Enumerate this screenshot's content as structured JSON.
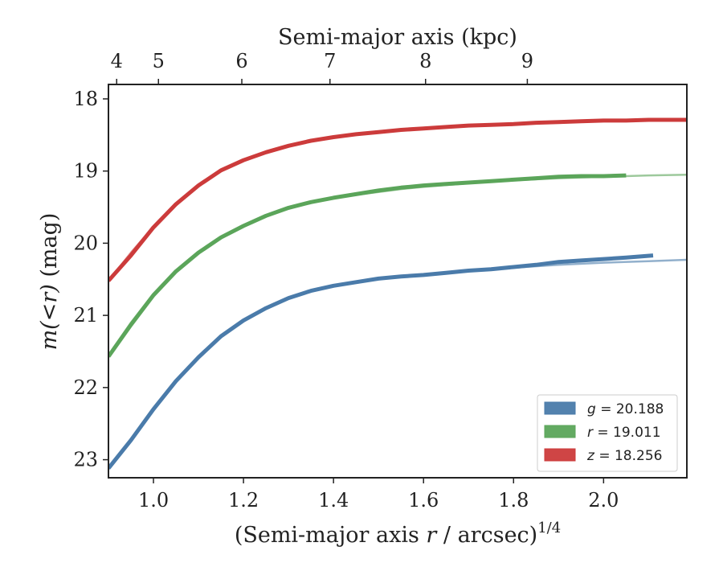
{
  "chart_data": {
    "type": "line",
    "x_axis_bottom": {
      "label_pre": "(Semi-major axis ",
      "label_var": "r",
      "label_post": " / arcsec)",
      "label_exp": "1/4",
      "range": [
        0.9,
        2.185
      ],
      "ticks": [
        1.0,
        1.2,
        1.4,
        1.6,
        1.8,
        2.0
      ],
      "tick_labels": [
        "1.0",
        "1.2",
        "1.4",
        "1.6",
        "1.8",
        "2.0"
      ]
    },
    "x_axis_top": {
      "label": "Semi-major axis (kpc)",
      "ticks_at_bottom_x": [
        0.812,
        0.917,
        1.009,
        1.092,
        1.167,
        1.237
      ],
      "tick_labels": [
        "4",
        "5",
        "6",
        "7",
        "8",
        "9"
      ],
      "ticks_native_x": [
        0.9,
        1.0,
        1.2,
        1.4,
        1.6,
        1.8,
        2.0,
        2.185
      ],
      "ticks_native_kpc": [
        3.79,
        4.94,
        6.02,
        7.04,
        7.98,
        8.87,
        9.72,
        10.5
      ]
    },
    "y_axis": {
      "label_var": "m(<r)",
      "label_unit": " (mag)",
      "range": [
        23.25,
        17.8
      ],
      "inverted": true,
      "ticks": [
        18,
        19,
        20,
        21,
        22,
        23
      ],
      "tick_labels": [
        "18",
        "19",
        "20",
        "21",
        "22",
        "23"
      ]
    },
    "grid": false,
    "legend_position": "lower-right",
    "series": [
      {
        "name": "g = 20.188",
        "legend_var": "g",
        "legend_value": " = 20.188",
        "color": "#4a7baa",
        "model_x": [
          0.9,
          0.95,
          1.0,
          1.05,
          1.1,
          1.15,
          1.2,
          1.25,
          1.3,
          1.35,
          1.4,
          1.45,
          1.5,
          1.55,
          1.6,
          1.7,
          1.8,
          1.9,
          2.0,
          2.1,
          2.185
        ],
        "model_y": [
          23.12,
          22.72,
          22.29,
          21.9,
          21.57,
          21.29,
          21.07,
          20.9,
          20.77,
          20.67,
          20.59,
          20.53,
          20.49,
          20.46,
          20.43,
          20.38,
          20.34,
          20.3,
          20.27,
          20.25,
          20.23
        ],
        "data_x": [
          0.9,
          0.95,
          1.0,
          1.05,
          1.1,
          1.15,
          1.2,
          1.25,
          1.3,
          1.35,
          1.4,
          1.45,
          1.5,
          1.55,
          1.6,
          1.65,
          1.7,
          1.75,
          1.8,
          1.85,
          1.9,
          1.95,
          2.0,
          2.05,
          2.11
        ],
        "data_y": [
          23.12,
          22.73,
          22.3,
          21.91,
          21.58,
          21.29,
          21.07,
          20.9,
          20.76,
          20.66,
          20.59,
          20.54,
          20.49,
          20.46,
          20.44,
          20.41,
          20.38,
          20.36,
          20.33,
          20.3,
          20.26,
          20.24,
          20.22,
          20.2,
          20.17
        ]
      },
      {
        "name": "r = 19.011",
        "legend_var": "r",
        "legend_value": " = 19.011",
        "color": "#5ba55a",
        "model_x": [
          0.9,
          0.95,
          1.0,
          1.05,
          1.1,
          1.15,
          1.2,
          1.25,
          1.3,
          1.35,
          1.4,
          1.45,
          1.5,
          1.55,
          1.6,
          1.7,
          1.8,
          1.9,
          2.0,
          2.1,
          2.185
        ],
        "model_y": [
          21.55,
          21.1,
          20.7,
          20.38,
          20.12,
          19.91,
          19.75,
          19.62,
          19.52,
          19.44,
          19.38,
          19.33,
          19.29,
          19.25,
          19.22,
          19.17,
          19.13,
          19.1,
          19.08,
          19.06,
          19.05
        ],
        "data_x": [
          0.9,
          0.95,
          1.0,
          1.05,
          1.1,
          1.15,
          1.2,
          1.25,
          1.3,
          1.35,
          1.4,
          1.45,
          1.5,
          1.55,
          1.6,
          1.65,
          1.7,
          1.75,
          1.8,
          1.85,
          1.9,
          1.95,
          2.0,
          2.05
        ],
        "data_y": [
          21.57,
          21.13,
          20.72,
          20.39,
          20.13,
          19.92,
          19.76,
          19.62,
          19.51,
          19.43,
          19.37,
          19.32,
          19.27,
          19.23,
          19.2,
          19.18,
          19.16,
          19.14,
          19.12,
          19.1,
          19.08,
          19.07,
          19.07,
          19.06
        ]
      },
      {
        "name": "z = 18.256",
        "legend_var": "z",
        "legend_value": " = 18.256",
        "color": "#cc3b3b",
        "model_x": [
          0.9,
          0.95,
          1.0,
          1.05,
          1.1,
          1.15,
          1.2,
          1.25,
          1.3,
          1.35,
          1.4,
          1.45,
          1.5,
          1.55,
          1.6,
          1.7,
          1.8,
          1.9,
          2.0,
          2.1,
          2.185
        ],
        "model_y": [
          20.52,
          20.13,
          19.77,
          19.46,
          19.2,
          18.99,
          18.84,
          18.73,
          18.64,
          18.57,
          18.52,
          18.48,
          18.45,
          18.42,
          18.4,
          18.37,
          18.34,
          18.32,
          18.31,
          18.3,
          18.29
        ],
        "data_x": [
          0.9,
          0.95,
          1.0,
          1.05,
          1.1,
          1.15,
          1.2,
          1.25,
          1.3,
          1.35,
          1.4,
          1.45,
          1.5,
          1.55,
          1.6,
          1.65,
          1.7,
          1.75,
          1.8,
          1.85,
          1.9,
          1.95,
          2.0,
          2.05,
          2.1,
          2.185
        ],
        "data_y": [
          20.52,
          20.17,
          19.78,
          19.46,
          19.2,
          18.99,
          18.85,
          18.74,
          18.65,
          18.58,
          18.53,
          18.49,
          18.46,
          18.43,
          18.41,
          18.39,
          18.37,
          18.36,
          18.35,
          18.33,
          18.32,
          18.31,
          18.3,
          18.3,
          18.29,
          18.29
        ]
      }
    ]
  }
}
